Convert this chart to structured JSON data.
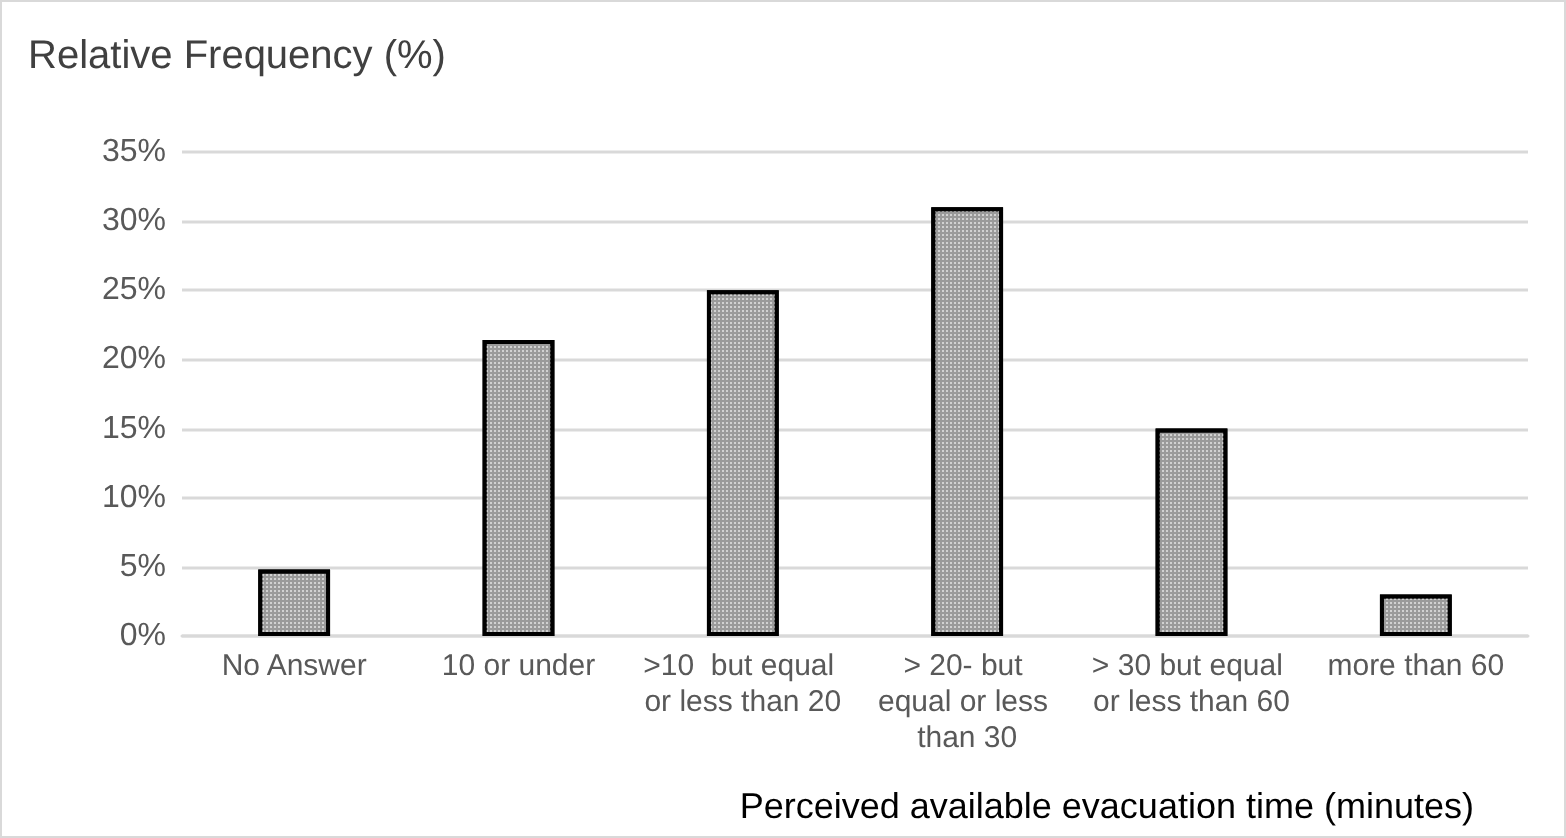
{
  "chart_data": {
    "type": "bar",
    "title": "Relative Frequency (%)",
    "xlabel": "Perceived available evacuation time (minutes)",
    "categories": [
      "No Answer",
      "10 or under",
      ">10  but equal or less than 20",
      "> 20- but equal or less than 30",
      "> 30 but equal or less than 60",
      "more than 60"
    ],
    "values": [
      4.8,
      21.4,
      25.0,
      31.0,
      15.0,
      3.0
    ],
    "color": "#9a9a9a",
    "ylim": [
      0,
      35
    ],
    "yticks": [
      {
        "value": 0,
        "label": "0%"
      },
      {
        "value": 5,
        "label": "5%"
      },
      {
        "value": 10,
        "label": "10%"
      },
      {
        "value": 15,
        "label": "15%"
      },
      {
        "value": 20,
        "label": "20%"
      },
      {
        "value": 25,
        "label": "25%"
      },
      {
        "value": 30,
        "label": "30%"
      },
      {
        "value": 35,
        "label": "35%"
      }
    ],
    "grid": "y"
  }
}
